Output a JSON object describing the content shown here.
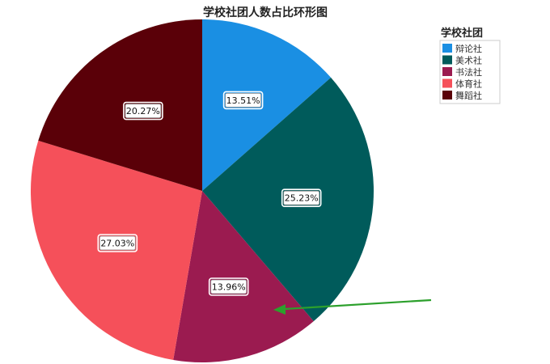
{
  "chart_data": {
    "type": "pie",
    "title": "学校社团人数占比环形图",
    "legend_title": "学校社团",
    "legend_position": "top-right",
    "start_angle_deg": 0,
    "direction": "clockwise",
    "categories": [
      "辩论社",
      "美术社",
      "书法社",
      "体育社",
      "舞蹈社"
    ],
    "values": [
      13.51,
      25.23,
      13.96,
      27.03,
      20.27
    ],
    "labels": [
      "13.51%",
      "25.23%",
      "13.96%",
      "27.03%",
      "20.27%"
    ],
    "colors": [
      "#1a8fe3",
      "#005b5b",
      "#9b1b50",
      "#f5505a",
      "#5a0008"
    ],
    "annotation": {
      "type": "arrow",
      "color": "#2ca02c",
      "points_to": "书法社"
    }
  }
}
